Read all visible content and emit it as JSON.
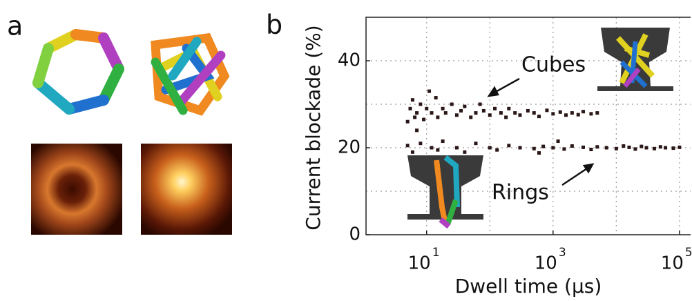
{
  "panel_a": {
    "label": "a"
  },
  "chart_data": {
    "type": "scatter",
    "panel_label": "b",
    "xlabel": "Dwell time (μs)",
    "ylabel": "Current blockade (%)",
    "xlog": true,
    "xlim": [
      1.1,
      150000
    ],
    "ylim": [
      0,
      50
    ],
    "xticks": [
      {
        "value": 10,
        "label": "10",
        "power": "1"
      },
      {
        "value": 1000,
        "label": "10",
        "power": "3"
      },
      {
        "value": 100000,
        "label": "10",
        "power": "5"
      }
    ],
    "xminor": [
      100,
      10000
    ],
    "yticks": [
      0,
      20,
      40
    ],
    "yminor": [
      10,
      30
    ],
    "grid": true,
    "series": [
      {
        "name": "Cubes",
        "color": "#2a1616",
        "x": [
          5,
          5.5,
          6,
          6.5,
          7,
          8,
          9,
          10,
          12,
          14,
          15,
          18,
          20,
          25,
          30,
          35,
          40,
          50,
          60,
          70,
          80,
          100,
          120,
          150,
          180,
          200,
          250,
          300,
          400,
          500,
          600,
          800,
          1000,
          1300,
          1600,
          2000,
          2500,
          3000,
          4000,
          5000,
          11,
          7
        ],
        "values": [
          26,
          29,
          31,
          27,
          28,
          30,
          26.5,
          29,
          28,
          31.5,
          27,
          29,
          28,
          30,
          27.5,
          28.5,
          29.5,
          27,
          28,
          30,
          28.5,
          27.5,
          29,
          28,
          27,
          29,
          28,
          27.5,
          28.5,
          28,
          27.2,
          28.6,
          27.8,
          28.2,
          27.5,
          28,
          27.6,
          28.3,
          27.8,
          28,
          33,
          24
        ]
      },
      {
        "name": "Rings",
        "color": "#2a1616",
        "x": [
          5,
          6,
          8,
          12,
          15,
          18,
          30,
          40,
          60,
          100,
          130,
          200,
          300,
          500,
          700,
          1000,
          1500,
          2000,
          3000,
          4000,
          5000,
          7000,
          10000,
          13000,
          16000,
          20000,
          25000,
          30000,
          40000,
          50000,
          60000,
          80000,
          100000,
          1200,
          600
        ],
        "values": [
          20.5,
          19,
          21,
          20,
          19.5,
          21.5,
          20,
          19,
          21,
          20,
          19.5,
          20.5,
          20,
          19.8,
          20.3,
          20,
          19.7,
          20.4,
          20.1,
          19.6,
          20.2,
          20,
          19.8,
          20.4,
          20.1,
          19.7,
          20.3,
          20,
          19.8,
          20.2,
          20,
          19.9,
          20.1,
          21.5,
          18.8
        ]
      }
    ]
  }
}
